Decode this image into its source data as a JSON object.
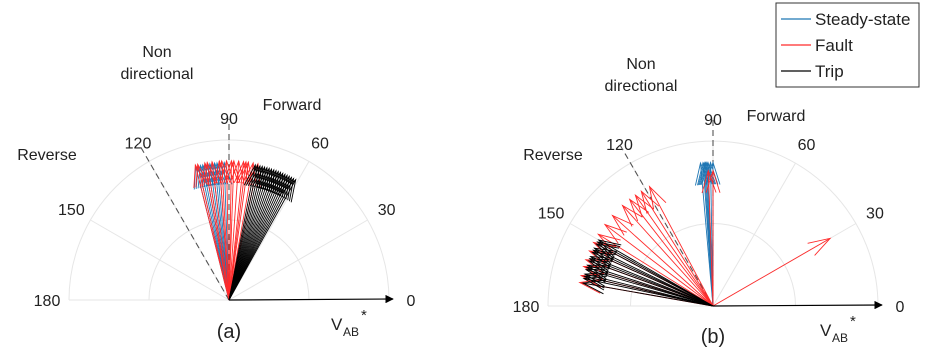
{
  "chart_data": [
    {
      "type": "polar",
      "panel_label": "(a)",
      "angle_ticks": [
        "0",
        "30",
        "60",
        "90",
        "120",
        "150",
        "180"
      ],
      "angle_range_deg": [
        0,
        180
      ],
      "grid": true,
      "region_labels": [
        "Non directional",
        "Forward",
        "Reverse"
      ],
      "boundary_angles_deg": [
        90,
        120
      ],
      "reference_axis_label": "V",
      "reference_axis_subscript": "AB",
      "reference_axis_superscript": "*",
      "series": [
        {
          "name": "Steady-state",
          "color": "#1f77b4",
          "angles_deg": [
            103,
            101,
            99,
            97,
            95,
            104,
            102,
            100,
            98,
            96,
            94,
            92
          ],
          "magnitude_fraction": 0.86
        },
        {
          "name": "Fault",
          "color": "#ff2a2a",
          "angles_deg": [
            103,
            100,
            97,
            94,
            91,
            89,
            86,
            84,
            82,
            80,
            78,
            104,
            99,
            93,
            88,
            83
          ],
          "magnitude_fraction": 0.87
        },
        {
          "name": "Trip",
          "color": "#000000",
          "angles_deg": [
            79,
            78,
            77,
            76,
            75,
            74,
            73,
            72,
            71,
            70,
            69,
            68,
            67,
            66,
            65,
            64,
            63,
            62,
            61
          ],
          "magnitude_fraction": 0.86
        }
      ]
    },
    {
      "type": "polar",
      "panel_label": "(b)",
      "angle_ticks": [
        "0",
        "30",
        "60",
        "90",
        "120",
        "150",
        "180"
      ],
      "angle_range_deg": [
        0,
        180
      ],
      "grid": true,
      "region_labels": [
        "Non directional",
        "Forward",
        "Reverse"
      ],
      "boundary_angles_deg": [
        90,
        120
      ],
      "reference_axis_label": "V",
      "reference_axis_subscript": "AB",
      "reference_axis_superscript": "*",
      "legend": {
        "placement": "top-right",
        "entries": [
          "Steady-state",
          "Fault",
          "Trip"
        ]
      },
      "series": [
        {
          "name": "Steady-state",
          "color": "#1f77b4",
          "angles_deg": [
            93,
            92,
            91,
            90,
            95,
            94,
            93.5,
            92.5
          ],
          "magnitude_fraction": 0.87
        },
        {
          "name": "Fault",
          "color": "#ff2a2a",
          "angles_deg": [
            118,
            125,
            132,
            138,
            143,
            148,
            152,
            156,
            160,
            163,
            167,
            170,
            128,
            122,
            90,
            92,
            30
          ],
          "magnitude_fraction": 0.82
        },
        {
          "name": "Trip",
          "color": "#000000",
          "angles_deg": [
            150,
            152,
            154,
            156,
            158,
            160,
            162,
            164,
            166,
            168,
            170,
            151,
            155,
            159,
            163,
            167
          ],
          "magnitude_fraction": 0.8
        }
      ]
    }
  ]
}
